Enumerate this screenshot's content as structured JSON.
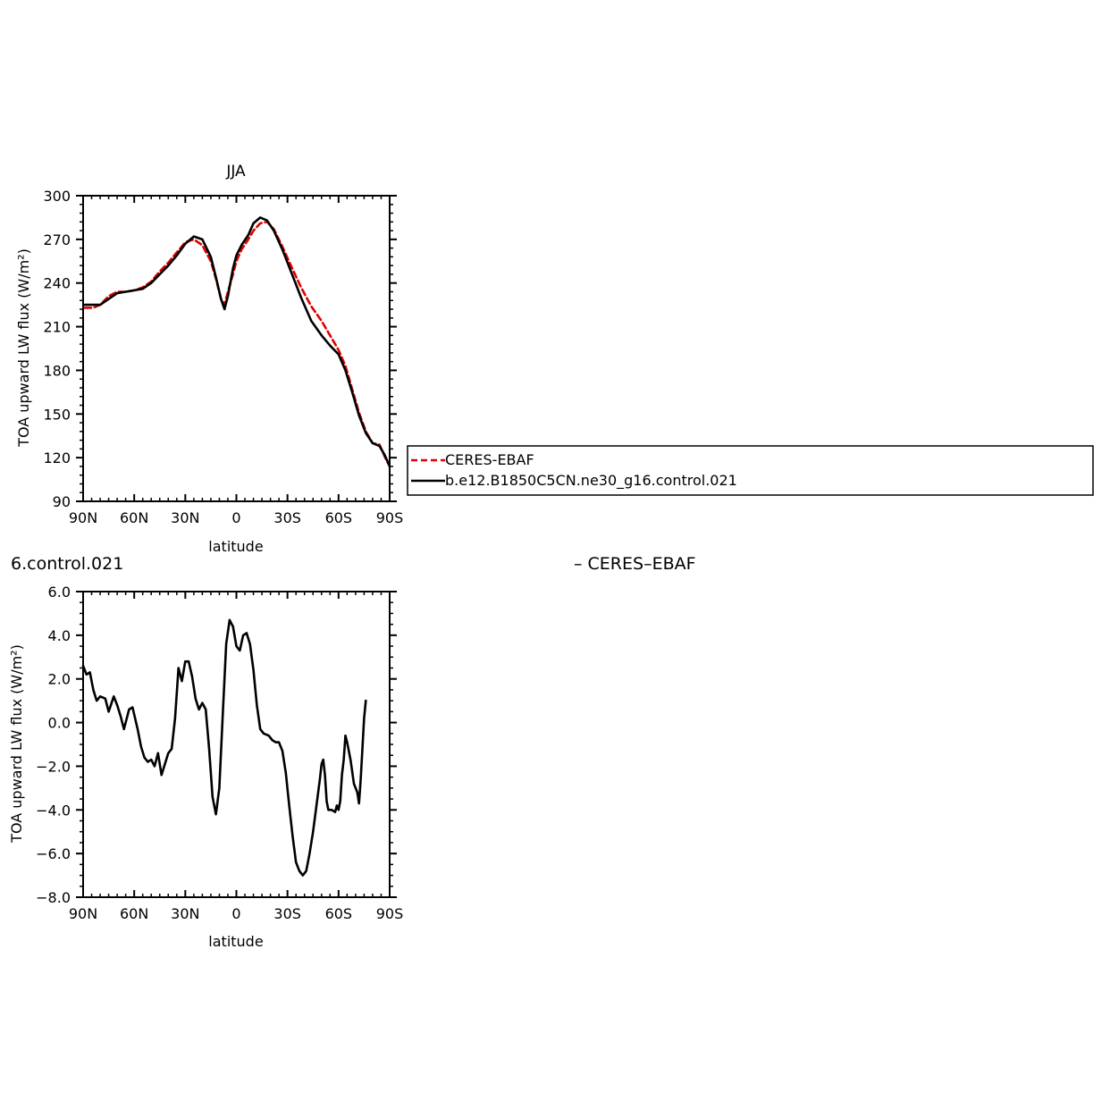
{
  "colors": {
    "obs": "#e00000",
    "model": "#000000",
    "axis": "#000000"
  },
  "chart_data": [
    {
      "type": "line",
      "title": "JJA",
      "xlabel": "latitude",
      "ylabel": "TOA upward LW flux (W/m²)",
      "xlim": [
        90,
        -90
      ],
      "ylim": [
        90,
        300
      ],
      "xticks": [
        90,
        60,
        30,
        0,
        -30,
        -60,
        -90
      ],
      "xtick_labels": [
        "90N",
        "60N",
        "30N",
        "0",
        "30S",
        "60S",
        "90S"
      ],
      "yticks": [
        90,
        120,
        150,
        180,
        210,
        240,
        270,
        300
      ],
      "ytick_labels": [
        "90",
        "120",
        "150",
        "180",
        "210",
        "240",
        "270",
        "300"
      ],
      "legend": [
        "CERES-EBAF",
        "b.e12.B1850C5CN.ne30_g16.control.021"
      ],
      "series": [
        {
          "name": "CERES-EBAF",
          "style": "dashed",
          "points": [
            [
              89,
              223
            ],
            [
              84,
              223
            ],
            [
              80,
              225
            ],
            [
              75,
              231
            ],
            [
              70,
              234
            ],
            [
              65,
              234
            ],
            [
              60,
              235
            ],
            [
              55,
              237
            ],
            [
              50,
              241
            ],
            [
              45,
              248
            ],
            [
              40,
              254
            ],
            [
              35,
              261
            ],
            [
              30,
              268
            ],
            [
              25,
              270
            ],
            [
              20,
              266
            ],
            [
              15,
              255
            ],
            [
              12,
              243
            ],
            [
              9,
              229
            ],
            [
              7,
              225
            ],
            [
              5,
              234
            ],
            [
              2,
              246
            ],
            [
              0,
              255
            ],
            [
              -3,
              263
            ],
            [
              -7,
              270
            ],
            [
              -10,
              276
            ],
            [
              -14,
              281
            ],
            [
              -18,
              282
            ],
            [
              -22,
              277
            ],
            [
              -27,
              265
            ],
            [
              -32,
              252
            ],
            [
              -38,
              237
            ],
            [
              -44,
              224
            ],
            [
              -50,
              214
            ],
            [
              -55,
              204
            ],
            [
              -60,
              194
            ],
            [
              -64,
              183
            ],
            [
              -68,
              167
            ],
            [
              -72,
              151
            ],
            [
              -76,
              138
            ],
            [
              -80,
              130
            ],
            [
              -84,
              129
            ],
            [
              -87,
              121
            ],
            [
              -90,
              114
            ]
          ]
        },
        {
          "name": "b.e12.B1850C5CN.ne30_g16.control.021",
          "style": "solid",
          "points": [
            [
              89,
              225
            ],
            [
              84,
              225
            ],
            [
              80,
              225
            ],
            [
              75,
              229
            ],
            [
              70,
              233
            ],
            [
              65,
              234
            ],
            [
              60,
              235
            ],
            [
              55,
              236
            ],
            [
              50,
              240
            ],
            [
              45,
              246
            ],
            [
              40,
              252
            ],
            [
              35,
              259
            ],
            [
              30,
              267
            ],
            [
              25,
              272
            ],
            [
              20,
              270
            ],
            [
              15,
              258
            ],
            [
              12,
              244
            ],
            [
              9,
              229
            ],
            [
              7,
              222
            ],
            [
              5,
              231
            ],
            [
              2,
              250
            ],
            [
              0,
              259
            ],
            [
              -3,
              266
            ],
            [
              -7,
              273
            ],
            [
              -10,
              281
            ],
            [
              -14,
              285
            ],
            [
              -18,
              283
            ],
            [
              -22,
              276
            ],
            [
              -27,
              263
            ],
            [
              -32,
              248
            ],
            [
              -38,
              230
            ],
            [
              -44,
              214
            ],
            [
              -50,
              204
            ],
            [
              -55,
              197
            ],
            [
              -60,
              191
            ],
            [
              -64,
              180
            ],
            [
              -68,
              165
            ],
            [
              -72,
              149
            ],
            [
              -76,
              137
            ],
            [
              -80,
              130
            ],
            [
              -84,
              128
            ],
            [
              -87,
              122
            ],
            [
              -90,
              114
            ]
          ]
        }
      ]
    },
    {
      "type": "line",
      "title": "6.control.021",
      "title_right": "– CERES–EBAF",
      "xlabel": "latitude",
      "ylabel": "TOA upward LW flux (W/m²)",
      "xlim": [
        90,
        -90
      ],
      "ylim": [
        -8,
        6
      ],
      "xticks": [
        90,
        60,
        30,
        0,
        -30,
        -60,
        -90
      ],
      "xtick_labels": [
        "90N",
        "60N",
        "30N",
        "0",
        "30S",
        "60S",
        "90S"
      ],
      "yticks": [
        -8,
        -6,
        -4,
        -2,
        0,
        2,
        4,
        6
      ],
      "ytick_labels": [
        "−8.0",
        "−6.0",
        "−4.0",
        "−2.0",
        "0.0",
        "2.0",
        "4.0",
        "6.0"
      ],
      "series": [
        {
          "name": "",
          "style": "solid",
          "points": [
            [
              90,
              2.6
            ],
            [
              88,
              2.2
            ],
            [
              86,
              2.3
            ],
            [
              84,
              1.5
            ],
            [
              82,
              1.0
            ],
            [
              80,
              1.2
            ],
            [
              77,
              1.1
            ],
            [
              75,
              0.5
            ],
            [
              72,
              1.2
            ],
            [
              70,
              0.8
            ],
            [
              68,
              0.3
            ],
            [
              66,
              -0.3
            ],
            [
              63,
              0.6
            ],
            [
              61,
              0.7
            ],
            [
              58,
              -0.3
            ],
            [
              56,
              -1.1
            ],
            [
              54,
              -1.6
            ],
            [
              52,
              -1.8
            ],
            [
              50,
              -1.7
            ],
            [
              48,
              -2.0
            ],
            [
              46,
              -1.4
            ],
            [
              44,
              -2.4
            ],
            [
              42,
              -1.9
            ],
            [
              40,
              -1.4
            ],
            [
              38,
              -1.2
            ],
            [
              36,
              0.2
            ],
            [
              34,
              2.5
            ],
            [
              32,
              1.9
            ],
            [
              30,
              2.8
            ],
            [
              28,
              2.8
            ],
            [
              26,
              2.1
            ],
            [
              24,
              1.1
            ],
            [
              22,
              0.6
            ],
            [
              20,
              0.9
            ],
            [
              18,
              0.6
            ],
            [
              16,
              -1.2
            ],
            [
              14,
              -3.4
            ],
            [
              12,
              -4.2
            ],
            [
              10,
              -3.0
            ],
            [
              8,
              0.4
            ],
            [
              6,
              3.6
            ],
            [
              4,
              4.7
            ],
            [
              2,
              4.4
            ],
            [
              0,
              3.5
            ],
            [
              -2,
              3.3
            ],
            [
              -4,
              4.0
            ],
            [
              -6,
              4.1
            ],
            [
              -8,
              3.6
            ],
            [
              -10,
              2.4
            ],
            [
              -12,
              0.8
            ],
            [
              -14,
              -0.3
            ],
            [
              -16,
              -0.5
            ],
            [
              -19,
              -0.6
            ],
            [
              -21,
              -0.8
            ],
            [
              -23,
              -0.9
            ],
            [
              -25,
              -0.9
            ],
            [
              -27,
              -1.3
            ],
            [
              -29,
              -2.3
            ],
            [
              -31,
              -3.8
            ],
            [
              -33,
              -5.2
            ],
            [
              -35,
              -6.4
            ],
            [
              -37,
              -6.8
            ],
            [
              -39,
              -7.0
            ],
            [
              -41,
              -6.8
            ],
            [
              -43,
              -6.0
            ],
            [
              -45,
              -5.0
            ],
            [
              -47,
              -3.8
            ],
            [
              -49,
              -2.6
            ],
            [
              -50,
              -1.9
            ],
            [
              -51,
              -1.7
            ],
            [
              -52,
              -2.4
            ],
            [
              -53,
              -3.6
            ],
            [
              -54,
              -4.0
            ],
            [
              -56,
              -4.0
            ],
            [
              -58,
              -4.1
            ],
            [
              -59,
              -3.8
            ],
            [
              -60,
              -4.0
            ],
            [
              -61,
              -3.6
            ],
            [
              -62,
              -2.4
            ],
            [
              -63,
              -1.7
            ],
            [
              -64,
              -0.6
            ],
            [
              -65,
              -0.9
            ],
            [
              -67,
              -1.7
            ],
            [
              -69,
              -2.8
            ],
            [
              -71,
              -3.2
            ],
            [
              -72,
              -3.7
            ],
            [
              -73,
              -2.6
            ],
            [
              -74,
              -1.2
            ],
            [
              -75,
              0.2
            ],
            [
              -76,
              1.0
            ]
          ]
        }
      ]
    }
  ]
}
